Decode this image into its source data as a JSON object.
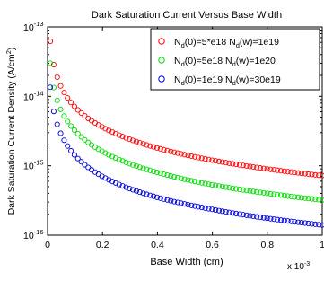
{
  "chart_data": {
    "type": "scatter",
    "title": "Dark Saturation Current Versus Base Width",
    "xlabel": "Base Width (cm)",
    "ylabel": "Dark Saturation Current Density (A/cm",
    "ylabel_sup": "2",
    "ylabel_close": ")",
    "x_multiplier_base": "x 10",
    "x_multiplier_exp": "-3",
    "xlim": [
      0,
      1
    ],
    "ylim": [
      1e-16,
      1e-13
    ],
    "yscale": "log",
    "grid": false,
    "legend_position": "top-right",
    "x_ticks": [
      {
        "value": 0,
        "label": "0"
      },
      {
        "value": 0.2,
        "label": "0.2"
      },
      {
        "value": 0.4,
        "label": "0.4"
      },
      {
        "value": 0.6,
        "label": "0.6"
      },
      {
        "value": 0.8,
        "label": "0.8"
      },
      {
        "value": 1,
        "label": "1"
      }
    ],
    "y_ticks": [
      {
        "value": 1e-16,
        "base": "10",
        "exp": "-16"
      },
      {
        "value": 1e-15,
        "base": "10",
        "exp": "-15"
      },
      {
        "value": 1e-14,
        "base": "10",
        "exp": "-14"
      },
      {
        "value": 1e-13,
        "base": "10",
        "exp": "-13"
      }
    ],
    "series": [
      {
        "color": "#ff0000",
        "legend": {
          "p1": "N",
          "s1": "d",
          "p2": "(0)=5*e18  N",
          "s2": "d",
          "p3": "(w)=1e19"
        },
        "marker_count": 80,
        "x_first": 0.01,
        "x_last": 1.0,
        "points": [
          [
            0.01,
            6.2e-14
          ],
          [
            0.02,
            3.2e-14
          ],
          [
            0.05,
            1.35e-14
          ],
          [
            0.1,
            7e-15
          ],
          [
            0.2,
            3.6e-15
          ],
          [
            0.4,
            1.8e-15
          ],
          [
            0.6,
            1.2e-15
          ],
          [
            0.8,
            9e-16
          ],
          [
            1.0,
            7.2e-16
          ]
        ]
      },
      {
        "color": "#00dd00",
        "legend": {
          "p1": "N",
          "s1": "d",
          "p2": "(0)=5e18   N",
          "s2": "d",
          "p3": "(w)=1e20"
        },
        "marker_count": 80,
        "x_first": 0.01,
        "x_last": 1.0,
        "points": [
          [
            0.01,
            3e-14
          ],
          [
            0.02,
            1.5e-14
          ],
          [
            0.05,
            6.2e-15
          ],
          [
            0.1,
            3.2e-15
          ],
          [
            0.2,
            1.6e-15
          ],
          [
            0.4,
            8e-16
          ],
          [
            0.6,
            5.3e-16
          ],
          [
            0.8,
            4e-16
          ],
          [
            1.0,
            3.2e-16
          ]
        ]
      },
      {
        "color": "#0000dd",
        "legend": {
          "p1": "N",
          "s1": "d",
          "p2": "(0)=1e19   N",
          "s2": "d",
          "p3": "(w)=30e19"
        },
        "marker_count": 80,
        "x_first": 0.01,
        "x_last": 1.0,
        "points": [
          [
            0.01,
            1.35e-14
          ],
          [
            0.02,
            6.8e-15
          ],
          [
            0.05,
            2.8e-15
          ],
          [
            0.1,
            1.4e-15
          ],
          [
            0.2,
            7e-16
          ],
          [
            0.4,
            3.5e-16
          ],
          [
            0.6,
            2.35e-16
          ],
          [
            0.8,
            1.75e-16
          ],
          [
            1.0,
            1.4e-16
          ]
        ]
      }
    ]
  }
}
